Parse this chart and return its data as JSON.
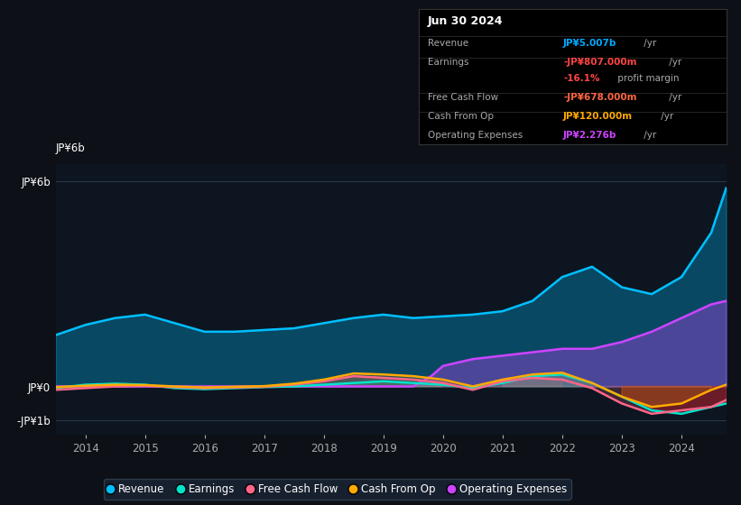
{
  "background_color": "#0d1117",
  "chart_bg": "#0d1520",
  "title": "Jun 30 2024",
  "yticks": [
    "JP¥6b",
    "JP¥0",
    "-JP¥1b"
  ],
  "ytick_vals": [
    6000000000,
    0,
    -1000000000
  ],
  "xticks": [
    "2014",
    "2015",
    "2016",
    "2017",
    "2018",
    "2019",
    "2020",
    "2021",
    "2022",
    "2023",
    "2024"
  ],
  "ylim": [
    -1400000000.0,
    6500000000.0
  ],
  "xlim": [
    2013.5,
    2024.75
  ],
  "colors": {
    "revenue": "#00bfff",
    "earnings": "#00e5cc",
    "free_cash_flow": "#ff6688",
    "cash_from_op": "#ffaa00",
    "operating_expenses": "#cc44ff"
  },
  "legend": [
    {
      "label": "Revenue",
      "color": "#00bfff"
    },
    {
      "label": "Earnings",
      "color": "#00e5cc"
    },
    {
      "label": "Free Cash Flow",
      "color": "#ff6688"
    },
    {
      "label": "Cash From Op",
      "color": "#ffaa00"
    },
    {
      "label": "Operating Expenses",
      "color": "#cc44ff"
    }
  ],
  "revenue_x": [
    2013.5,
    2014.0,
    2014.5,
    2015.0,
    2015.5,
    2016.0,
    2016.5,
    2017.0,
    2017.5,
    2018.0,
    2018.5,
    2019.0,
    2019.5,
    2020.0,
    2020.5,
    2021.0,
    2021.5,
    2022.0,
    2022.5,
    2023.0,
    2023.5,
    2024.0,
    2024.5,
    2024.75
  ],
  "revenue_y": [
    1500000000,
    1800000000,
    2000000000,
    2100000000,
    1850000000,
    1600000000,
    1600000000,
    1650000000,
    1700000000,
    1850000000,
    2000000000,
    2100000000,
    2000000000,
    2050000000,
    2100000000,
    2200000000,
    2500000000,
    3200000000,
    3500000000,
    2900000000,
    2700000000,
    3200000000,
    4500000000,
    5800000000
  ],
  "opex_x": [
    2013.5,
    2019.5,
    2019.8,
    2020.0,
    2020.5,
    2021.0,
    2021.5,
    2022.0,
    2022.5,
    2023.0,
    2023.5,
    2024.0,
    2024.5,
    2024.75
  ],
  "opex_y": [
    0,
    0,
    300000000,
    600000000,
    800000000,
    900000000,
    1000000000,
    1100000000,
    1100000000,
    1300000000,
    1600000000,
    2000000000,
    2400000000,
    2500000000
  ],
  "earnings_x": [
    2013.5,
    2014.0,
    2014.5,
    2015.0,
    2015.5,
    2016.0,
    2016.5,
    2017.0,
    2017.5,
    2018.0,
    2018.5,
    2019.0,
    2019.5,
    2020.0,
    2020.5,
    2021.0,
    2021.5,
    2022.0,
    2022.5,
    2023.0,
    2023.5,
    2024.0,
    2024.5,
    2024.75
  ],
  "earnings_y": [
    -50000000,
    50000000,
    80000000,
    50000000,
    -50000000,
    -80000000,
    -50000000,
    -20000000,
    0,
    50000000,
    100000000,
    150000000,
    100000000,
    50000000,
    -50000000,
    100000000,
    300000000,
    350000000,
    100000000,
    -300000000,
    -700000000,
    -800000000,
    -600000000,
    -500000000
  ],
  "fcf_x": [
    2013.5,
    2014.0,
    2014.5,
    2015.0,
    2015.5,
    2016.0,
    2016.5,
    2017.0,
    2017.5,
    2018.0,
    2018.5,
    2019.0,
    2019.5,
    2020.0,
    2020.5,
    2021.0,
    2021.5,
    2022.0,
    2022.5,
    2023.0,
    2023.5,
    2024.0,
    2024.5,
    2024.75
  ],
  "fcf_y": [
    -100000000,
    -50000000,
    0,
    20000000,
    -20000000,
    -50000000,
    -30000000,
    -10000000,
    50000000,
    150000000,
    300000000,
    250000000,
    200000000,
    100000000,
    -100000000,
    150000000,
    250000000,
    200000000,
    -50000000,
    -500000000,
    -800000000,
    -700000000,
    -600000000,
    -400000000
  ],
  "cop_x": [
    2013.5,
    2014.0,
    2014.5,
    2015.0,
    2015.5,
    2016.0,
    2016.5,
    2017.0,
    2017.5,
    2018.0,
    2018.5,
    2019.0,
    2019.5,
    2020.0,
    2020.5,
    2021.0,
    2021.5,
    2022.0,
    2022.5,
    2023.0,
    2023.5,
    2024.0,
    2024.5,
    2024.75
  ],
  "cop_y": [
    -20000000,
    20000000,
    50000000,
    40000000,
    0,
    -30000000,
    -10000000,
    10000000,
    80000000,
    200000000,
    380000000,
    350000000,
    300000000,
    200000000,
    0,
    200000000,
    350000000,
    400000000,
    100000000,
    -300000000,
    -600000000,
    -500000000,
    -100000000,
    50000000
  ]
}
